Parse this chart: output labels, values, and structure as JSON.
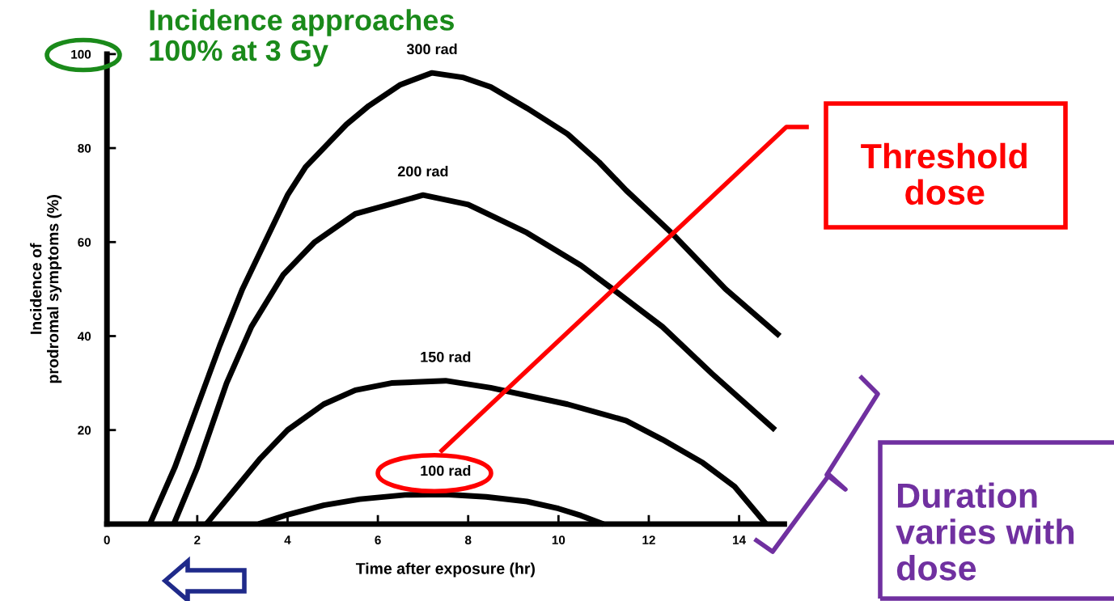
{
  "chart_data": {
    "type": "line",
    "xlabel": "Time after exposure (hr)",
    "ylabel": "Incidence of\nprodromal symptoms (%)",
    "xlim": [
      0,
      15
    ],
    "ylim": [
      0,
      100
    ],
    "xticks": [
      0,
      2,
      4,
      6,
      8,
      10,
      12,
      14
    ],
    "yticks": [
      20,
      40,
      60,
      80,
      100
    ],
    "grid": false,
    "legend": false,
    "marker": "none",
    "line_style": "solid",
    "series": [
      {
        "name": "300 rad",
        "color": "#000000",
        "x": [
          0.95,
          1.5,
          2.0,
          2.5,
          3.0,
          3.5,
          4.0,
          4.4,
          4.8,
          5.3,
          5.8,
          6.5,
          7.2,
          7.9,
          8.5,
          9.3,
          10.2,
          10.9,
          11.5,
          12.0,
          12.5,
          13.1,
          13.7,
          14.3,
          14.9
        ],
        "values": [
          0,
          12,
          25,
          38,
          50,
          60,
          70,
          76,
          80,
          85,
          89,
          93.5,
          96,
          95,
          93,
          88.5,
          83,
          77,
          71,
          66.5,
          62,
          56,
          50,
          45,
          40
        ]
      },
      {
        "name": "200 rad",
        "color": "#000000",
        "x": [
          1.48,
          2.0,
          2.65,
          3.2,
          3.9,
          4.6,
          5.5,
          7.0,
          8.0,
          9.3,
          10.5,
          11.2,
          12.3,
          13.4,
          14.8
        ],
        "values": [
          0,
          12,
          30,
          42,
          53,
          60,
          66,
          70,
          68,
          62,
          55,
          50,
          42,
          32,
          20
        ]
      },
      {
        "name": "150 rad",
        "color": "#000000",
        "x": [
          2.2,
          2.8,
          3.4,
          4.0,
          4.8,
          5.5,
          6.3,
          7.5,
          8.5,
          10.2,
          11.5,
          12.3,
          13.2,
          13.9,
          14.6
        ],
        "values": [
          0,
          7,
          14,
          20,
          25.5,
          28.5,
          30,
          30.5,
          29,
          25.5,
          22,
          18,
          13,
          8,
          0
        ]
      },
      {
        "name": "100 rad",
        "color": "#000000",
        "x": [
          3.36,
          4.0,
          4.8,
          5.6,
          6.6,
          7.5,
          8.4,
          9.3,
          10.0,
          10.5,
          11.0
        ],
        "values": [
          0,
          2,
          4,
          5.3,
          6.2,
          6.3,
          5.8,
          4.8,
          3.3,
          1.8,
          0
        ]
      }
    ],
    "annotations": [
      "Incidence approaches\n100% at 3 Gy",
      "Threshold\ndose",
      "Duration\nvaries with\ndose"
    ]
  }
}
